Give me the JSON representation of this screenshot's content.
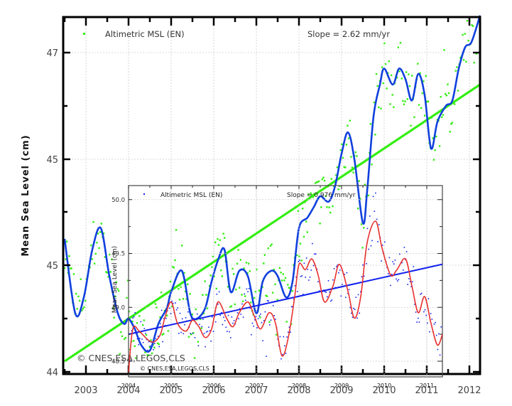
{
  "chart_data": [
    {
      "id": "main",
      "type": "scatter",
      "title": "",
      "xlabel": "",
      "ylabel": "Mean Sea Level (cm)",
      "xlim": [
        2002.5,
        2012.25
      ],
      "ytick_labels": [
        "47",
        "45",
        "45",
        "44"
      ],
      "xtick_labels": [
        "2003",
        "2004",
        "2005",
        "2006",
        "2007",
        "2008",
        "2009",
        "2010",
        "2011",
        "2012"
      ],
      "grid": true,
      "legend": {
        "label": "Altimetric MSL (EN)",
        "marker_color": "#33ee11",
        "position": "upper-left"
      },
      "annotation_slope": "Slope = 2.62 mm/yr",
      "copyright": "© CNES,ESA,LEGOS,CLS",
      "series": [
        {
          "name": "Altimetric MSL (EN)",
          "kind": "points",
          "color": "#33ee11"
        },
        {
          "name": "Smoothed MSL",
          "kind": "line",
          "color": "#1040dd",
          "x": [
            2002.5,
            2002.75,
            2002.95,
            2003.15,
            2003.35,
            2003.55,
            2003.75,
            2003.9,
            2004.0,
            2004.15,
            2004.3,
            2004.5,
            2004.7,
            2004.9,
            2005.0,
            2005.25,
            2005.45,
            2005.6,
            2005.8,
            2005.95,
            2006.1,
            2006.25,
            2006.4,
            2006.6,
            2006.8,
            2007.0,
            2007.15,
            2007.35,
            2007.5,
            2007.7,
            2007.85,
            2008.0,
            2008.2,
            2008.35,
            2008.5,
            2008.7,
            2008.85,
            2009.0,
            2009.15,
            2009.3,
            2009.5,
            2009.6,
            2009.75,
            2009.9,
            2010.0,
            2010.2,
            2010.35,
            2010.5,
            2010.65,
            2010.8,
            2010.95,
            2011.1,
            2011.25,
            2011.45,
            2011.6,
            2011.75,
            2011.9,
            2012.05,
            2012.25
          ],
          "y": [
            45.25,
            44.55,
            44.7,
            45.15,
            45.35,
            44.9,
            44.55,
            44.45,
            44.5,
            44.4,
            44.25,
            44.2,
            44.45,
            44.6,
            44.75,
            44.95,
            44.55,
            44.5,
            44.6,
            44.85,
            45.05,
            45.15,
            44.75,
            44.95,
            44.9,
            44.55,
            44.85,
            44.95,
            44.9,
            44.7,
            44.85,
            45.35,
            45.45,
            45.55,
            45.65,
            45.6,
            45.75,
            46.05,
            46.25,
            46.0,
            45.4,
            45.7,
            46.4,
            46.7,
            46.85,
            46.7,
            46.85,
            46.75,
            46.55,
            46.8,
            46.6,
            46.1,
            46.35,
            46.5,
            46.55,
            46.85,
            47.05,
            47.1,
            47.35
          ]
        },
        {
          "name": "Linear trend",
          "kind": "line",
          "color": "#33ee11",
          "x": [
            2002.5,
            2012.25
          ],
          "y": [
            44.1,
            46.7
          ]
        }
      ]
    },
    {
      "id": "inset",
      "type": "scatter",
      "title": "",
      "xlabel": "",
      "ylabel": "Mean Sea Level (cm)",
      "xlim": [
        2004.0,
        2011.4
      ],
      "ylim": [
        48.35,
        50.15
      ],
      "ytick_labels": [
        "50.0",
        "49.5",
        "49.0",
        "48.5"
      ],
      "yticks": [
        50.0,
        49.5,
        49.0,
        48.5
      ],
      "xtick_labels": [
        "2004",
        "2005",
        "2006",
        "2007",
        "2008",
        "2009",
        "2010",
        "2011"
      ],
      "grid": true,
      "legend": {
        "label": "Altimetric MSL (EN)",
        "marker_color": "#1020ee",
        "position": "upper-left"
      },
      "annotation_slope": "Slope = 0.976 mm/yr",
      "copyright": "© CNES,ESA,LEGOS,CLS",
      "series": [
        {
          "name": "Altimetric MSL (EN)",
          "kind": "points",
          "color": "#1020ee"
        },
        {
          "name": "Smoothed MSL",
          "kind": "line",
          "color": "#e83030",
          "x": [
            2004.0,
            2004.1,
            2004.25,
            2004.45,
            2004.6,
            2004.75,
            2004.85,
            2005.0,
            2005.15,
            2005.35,
            2005.5,
            2005.65,
            2005.8,
            2005.95,
            2006.1,
            2006.3,
            2006.45,
            2006.6,
            2006.8,
            2006.95,
            2007.1,
            2007.3,
            2007.45,
            2007.6,
            2007.75,
            2007.9,
            2008.0,
            2008.15,
            2008.3,
            2008.45,
            2008.6,
            2008.8,
            2008.95,
            2009.15,
            2009.3,
            2009.45,
            2009.6,
            2009.8,
            2009.95,
            2010.15,
            2010.3,
            2010.5,
            2010.65,
            2010.8,
            2010.95,
            2011.1,
            2011.25,
            2011.4
          ],
          "y": [
            48.4,
            48.8,
            48.78,
            48.7,
            48.68,
            48.75,
            48.9,
            49.05,
            48.85,
            48.78,
            48.88,
            48.82,
            48.72,
            48.8,
            49.05,
            48.9,
            48.82,
            48.95,
            49.05,
            48.92,
            48.8,
            48.95,
            48.85,
            48.55,
            48.72,
            49.1,
            49.4,
            49.35,
            49.45,
            49.3,
            49.05,
            49.2,
            49.4,
            49.15,
            48.9,
            49.1,
            49.6,
            49.8,
            49.55,
            49.3,
            49.35,
            49.45,
            49.2,
            48.95,
            49.1,
            48.85,
            48.65,
            48.75
          ]
        },
        {
          "name": "Linear trend",
          "kind": "line",
          "color": "#1020ee",
          "x": [
            2004.0,
            2011.4
          ],
          "y": [
            48.75,
            49.4
          ]
        }
      ]
    }
  ],
  "labels": {
    "main_ylabel": "Mean Sea Level (cm)",
    "main_legend": "Altimetric MSL (EN)",
    "main_slope": "Slope = 2.62 mm/yr",
    "main_copyright": "© CNES,ESA,LEGOS,CLS",
    "inset_ylabel": "Mean Sea Level (cm)",
    "inset_legend": "Altimetric MSL (EN)",
    "inset_slope": "Slope = 0.976 mm/yr",
    "inset_copyright": "© CNES,ESA,LEGOS,CLS"
  }
}
